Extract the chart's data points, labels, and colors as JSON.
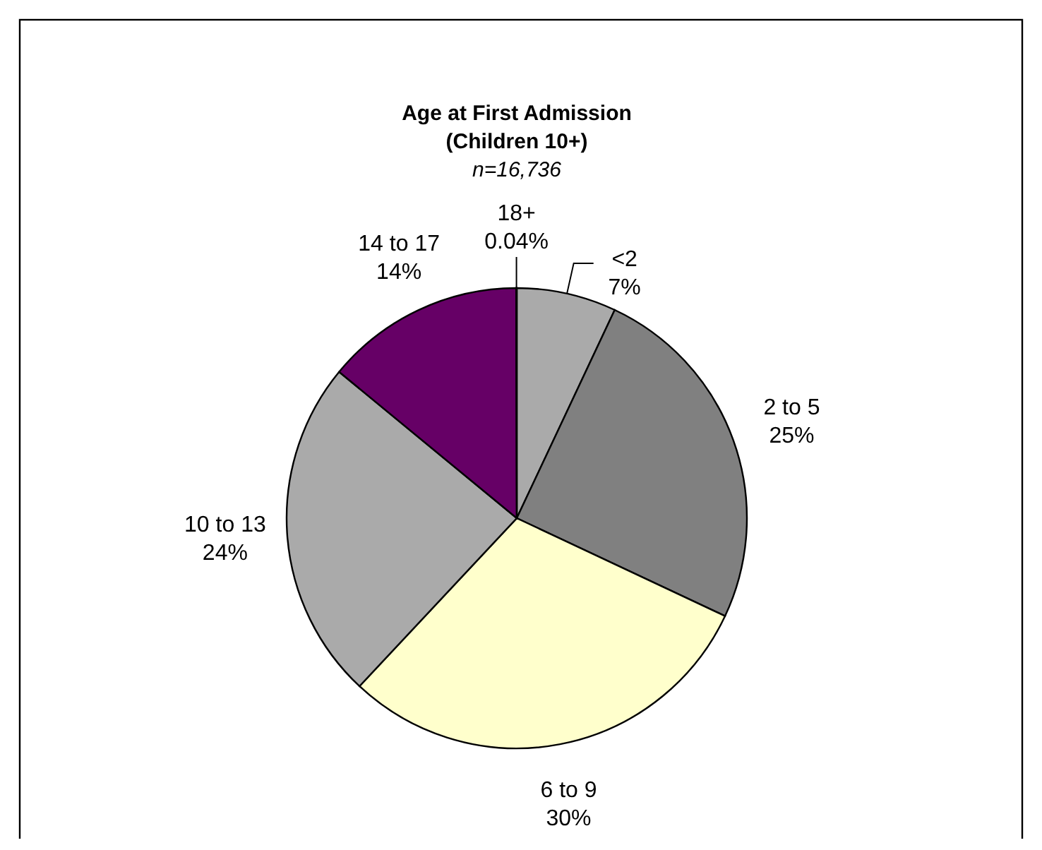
{
  "chart_data": {
    "type": "pie",
    "title": "Age at First Admission\n(Children 10+)",
    "subtitle": "n=16,736",
    "categories": [
      "<2",
      "2 to 5",
      "6 to 9",
      "10 to 13",
      "14 to 17",
      "18+"
    ],
    "values": [
      7,
      25,
      30,
      24,
      14,
      0.04
    ],
    "value_labels": [
      "7%",
      "25%",
      "30%",
      "24%",
      "14%",
      "0.04%"
    ],
    "colors": [
      "#aaaaaa",
      "#808080",
      "#ffffcc",
      "#aaaaaa",
      "#660066",
      "#333399"
    ]
  }
}
